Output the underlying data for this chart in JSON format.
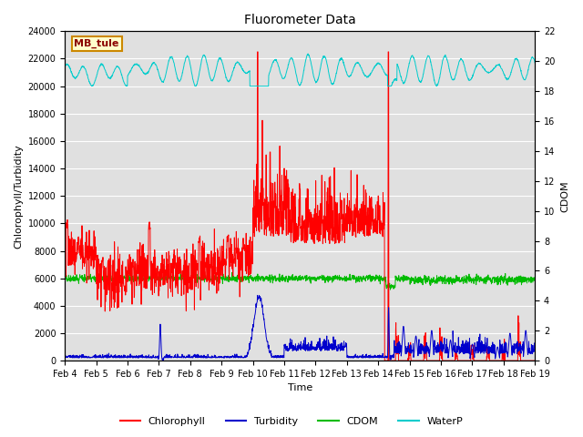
{
  "title": "Fluorometer Data",
  "xlabel": "Time",
  "ylabel_left": "Chlorophyll/Turbidity",
  "ylabel_right": "CDOM",
  "annotation_text": "MB_tule",
  "annotation_bg": "#ffffcc",
  "annotation_border": "#cc8800",
  "x_tick_labels": [
    "Feb 4",
    "Feb 5",
    "Feb 6",
    "Feb 7",
    "Feb 8",
    "Feb 9",
    "Feb 10",
    "Feb 11",
    "Feb 12",
    "Feb 13",
    "Feb 14",
    "Feb 15",
    "Feb 16",
    "Feb 17",
    "Feb 18",
    "Feb 19"
  ],
  "ylim_left": [
    0,
    24000
  ],
  "ylim_right": [
    0,
    22
  ],
  "yticks_left": [
    0,
    2000,
    4000,
    6000,
    8000,
    10000,
    12000,
    14000,
    16000,
    18000,
    20000,
    22000,
    24000
  ],
  "yticks_right": [
    0,
    2,
    4,
    6,
    8,
    10,
    12,
    14,
    16,
    18,
    20,
    22
  ],
  "colors": {
    "chlorophyll": "#ff0000",
    "turbidity": "#0000cc",
    "cdom": "#00bb00",
    "waterp": "#00cccc",
    "background": "#e0e0e0"
  },
  "legend_labels": [
    "Chlorophyll",
    "Turbidity",
    "CDOM",
    "WaterP"
  ],
  "grid_color": "#ffffff",
  "n_points": 2000
}
